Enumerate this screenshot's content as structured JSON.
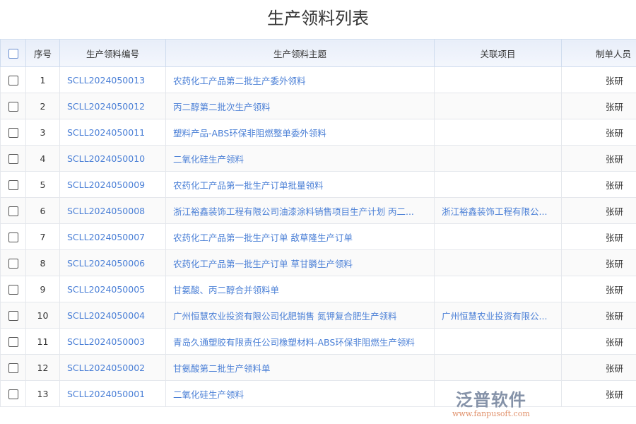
{
  "title": "生产领料列表",
  "columns": [
    "序号",
    "生产领料编号",
    "生产领料主题",
    "关联项目",
    "制单人员"
  ],
  "rows": [
    {
      "seq": "1",
      "code": "SCLL2024050013",
      "subject": "农药化工产品第二批生产委外领料",
      "project": "",
      "person": "张研"
    },
    {
      "seq": "2",
      "code": "SCLL2024050012",
      "subject": "丙二醇第二批次生产领料",
      "project": "",
      "person": "张研"
    },
    {
      "seq": "3",
      "code": "SCLL2024050011",
      "subject": "塑料产品-ABS环保非阻燃整单委外领料",
      "project": "",
      "person": "张研"
    },
    {
      "seq": "4",
      "code": "SCLL2024050010",
      "subject": "二氧化硅生产领料",
      "project": "",
      "person": "张研"
    },
    {
      "seq": "5",
      "code": "SCLL2024050009",
      "subject": "农药化工产品第一批生产订单批量领料",
      "project": "",
      "person": "张研"
    },
    {
      "seq": "6",
      "code": "SCLL2024050008",
      "subject": "浙江裕鑫装饰工程有限公司油漆涂料销售项目生产计划 丙二...",
      "project": "浙江裕鑫装饰工程有限公...",
      "person": "张研"
    },
    {
      "seq": "7",
      "code": "SCLL2024050007",
      "subject": "农药化工产品第一批生产订单 敌草隆生产订单",
      "project": "",
      "person": "张研"
    },
    {
      "seq": "8",
      "code": "SCLL2024050006",
      "subject": "农药化工产品第一批生产订单 草甘膦生产领料",
      "project": "",
      "person": "张研"
    },
    {
      "seq": "9",
      "code": "SCLL2024050005",
      "subject": "甘氨酸、丙二醇合并领料单",
      "project": "",
      "person": "张研"
    },
    {
      "seq": "10",
      "code": "SCLL2024050004",
      "subject": "广州恒慧农业投资有限公司化肥销售 氮钾复合肥生产领料",
      "project": "广州恒慧农业投资有限公...",
      "person": "张研"
    },
    {
      "seq": "11",
      "code": "SCLL2024050003",
      "subject": "青岛久通塑胶有限责任公司橡塑材料-ABS环保非阻燃生产领料",
      "project": "",
      "person": "张研"
    },
    {
      "seq": "12",
      "code": "SCLL2024050002",
      "subject": "甘氨酸第二批生产领料单",
      "project": "",
      "person": "张研"
    },
    {
      "seq": "13",
      "code": "SCLL2024050001",
      "subject": "二氧化硅生产领料",
      "project": "",
      "person": "张研"
    }
  ],
  "logo": {
    "name": "泛普软件",
    "url": "www.fanpusoft.com"
  },
  "colors": {
    "link": "#4a7fd6",
    "header_bg": "#e8eef9"
  }
}
